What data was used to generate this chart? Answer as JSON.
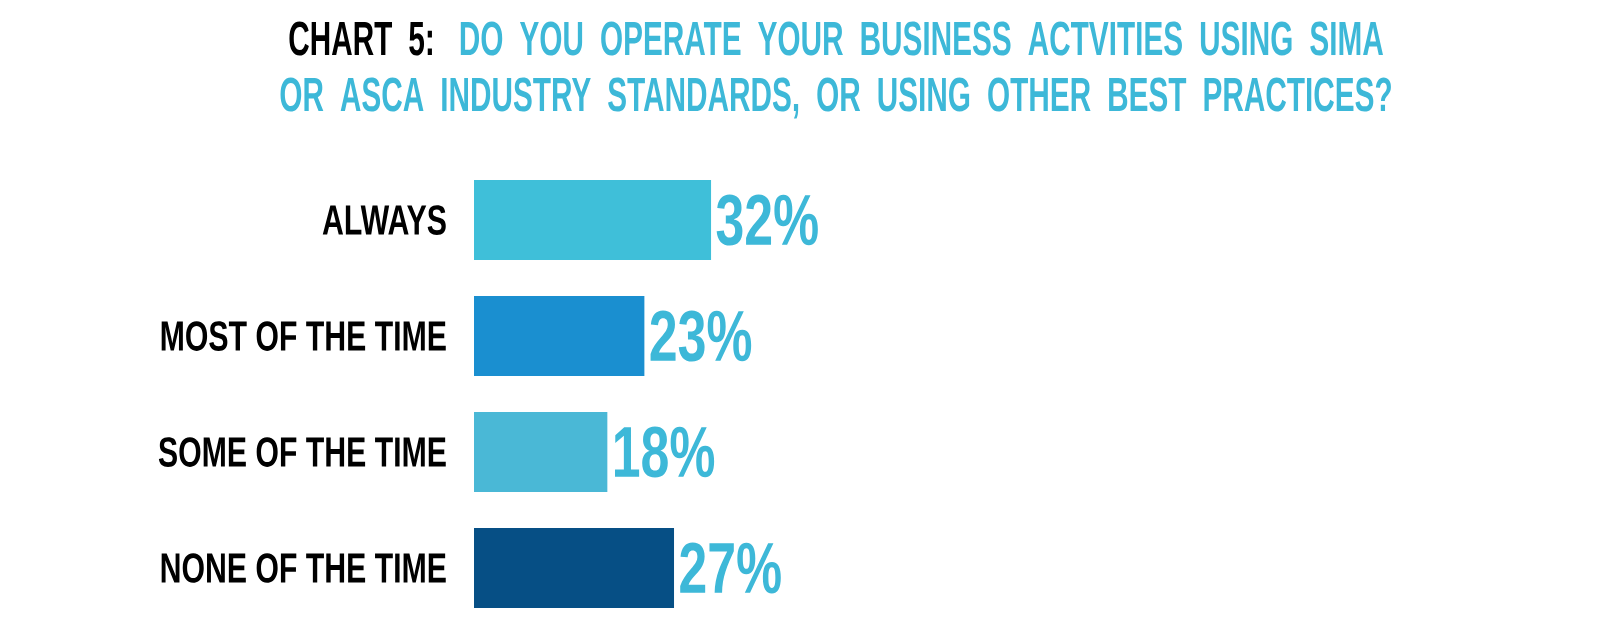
{
  "chart_data": {
    "type": "bar",
    "orientation": "horizontal",
    "title": "CHART 5:",
    "subtitle": "DO YOU OPERATE YOUR BUSINESS ACTVITIES USING SIMA OR ASCA INDUSTRY STANDARDS, OR USING OTHER BEST PRACTICES?",
    "categories": [
      "ALWAYS",
      "MOST OF THE TIME",
      "SOME OF THE TIME",
      "NONE OF THE TIME"
    ],
    "values": [
      32,
      23,
      18,
      27
    ],
    "colors": [
      "#3fbfd9",
      "#1a8fd0",
      "#4ab8d6",
      "#064f85"
    ],
    "value_labels": [
      "32%",
      "23%",
      "18%",
      "27%"
    ]
  }
}
